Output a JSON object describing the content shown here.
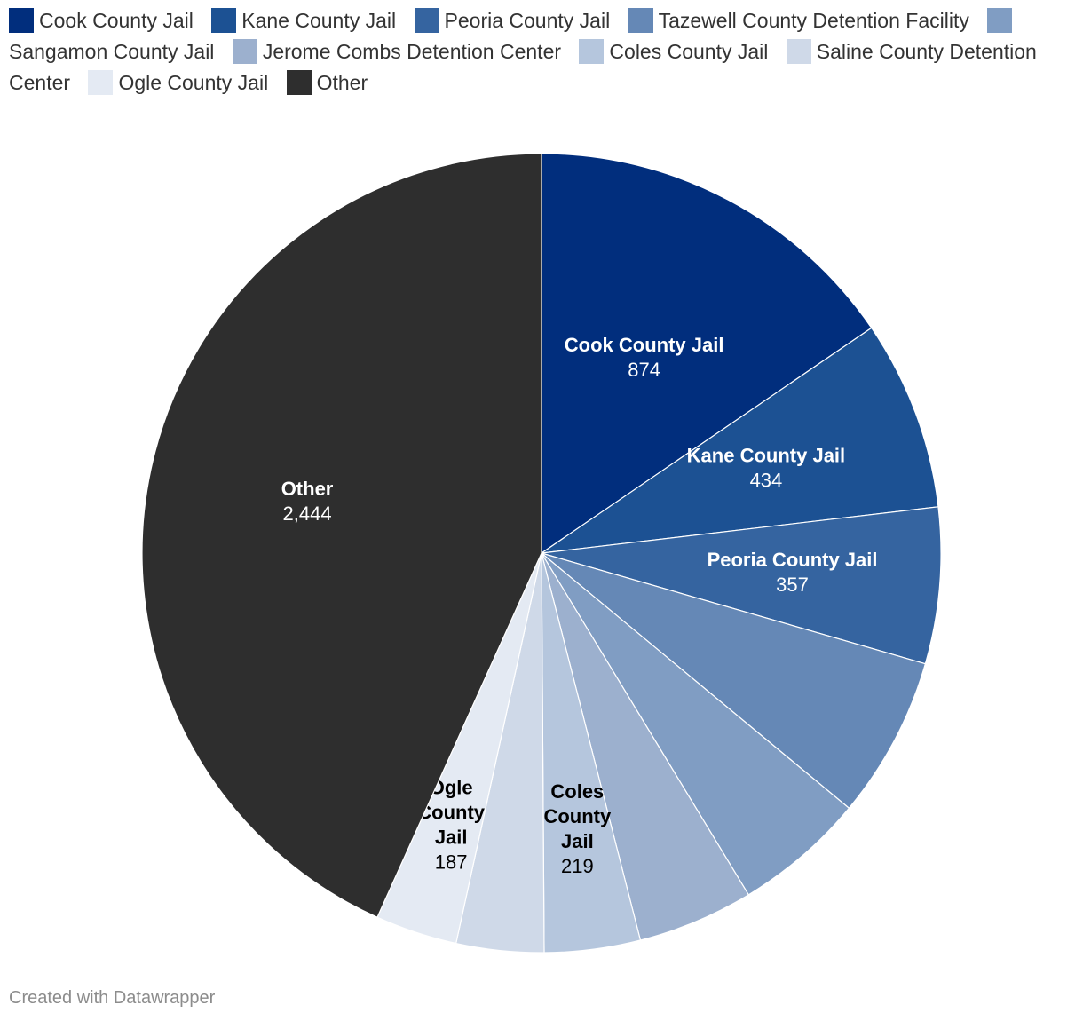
{
  "chart_data": {
    "type": "pie",
    "title": "",
    "slices": [
      {
        "label": "Cook County Jail",
        "value": 874,
        "display": "874",
        "color": "#012e7d",
        "label_color": "#ffffff",
        "label_lines": [
          "Cook County Jail"
        ],
        "show_label": true
      },
      {
        "label": "Kane County Jail",
        "value": 434,
        "display": "434",
        "color": "#1c5193",
        "label_color": "#ffffff",
        "label_lines": [
          "Kane County Jail"
        ],
        "show_label": true
      },
      {
        "label": "Peoria County Jail",
        "value": 357,
        "display": "357",
        "color": "#3564a0",
        "label_color": "#ffffff",
        "label_lines": [
          "Peoria County Jail"
        ],
        "show_label": true
      },
      {
        "label": "Tazewell County Detention Facility",
        "value": 370,
        "display": "",
        "color": "#6588b6",
        "label_color": "#ffffff",
        "label_lines": [],
        "show_label": false
      },
      {
        "label": "Sangamon County Jail",
        "value": 300,
        "display": "",
        "color": "#809dc3",
        "label_color": "#ffffff",
        "label_lines": [],
        "show_label": false
      },
      {
        "label": "Jerome Combs Detention Center",
        "value": 265,
        "display": "",
        "color": "#9cb0ce",
        "label_color": "#333333",
        "label_lines": [],
        "show_label": false
      },
      {
        "label": "Coles County Jail",
        "value": 219,
        "display": "219",
        "color": "#b5c6dd",
        "label_color": "#000000",
        "label_lines": [
          "Coles",
          "County",
          "Jail"
        ],
        "show_label": true
      },
      {
        "label": "Saline County Detention Center",
        "value": 200,
        "display": "",
        "color": "#cfd9e8",
        "label_color": "#333333",
        "label_lines": [],
        "show_label": false
      },
      {
        "label": "Ogle County Jail",
        "value": 187,
        "display": "187",
        "color": "#e4eaf3",
        "label_color": "#000000",
        "label_lines": [
          "Ogle",
          "County",
          "Jail"
        ],
        "show_label": true
      },
      {
        "label": "Other",
        "value": 2444,
        "display": "2,444",
        "color": "#2e2e2e",
        "label_color": "#ffffff",
        "label_lines": [
          "Other"
        ],
        "show_label": true
      }
    ]
  },
  "credit": "Created with Datawrapper"
}
